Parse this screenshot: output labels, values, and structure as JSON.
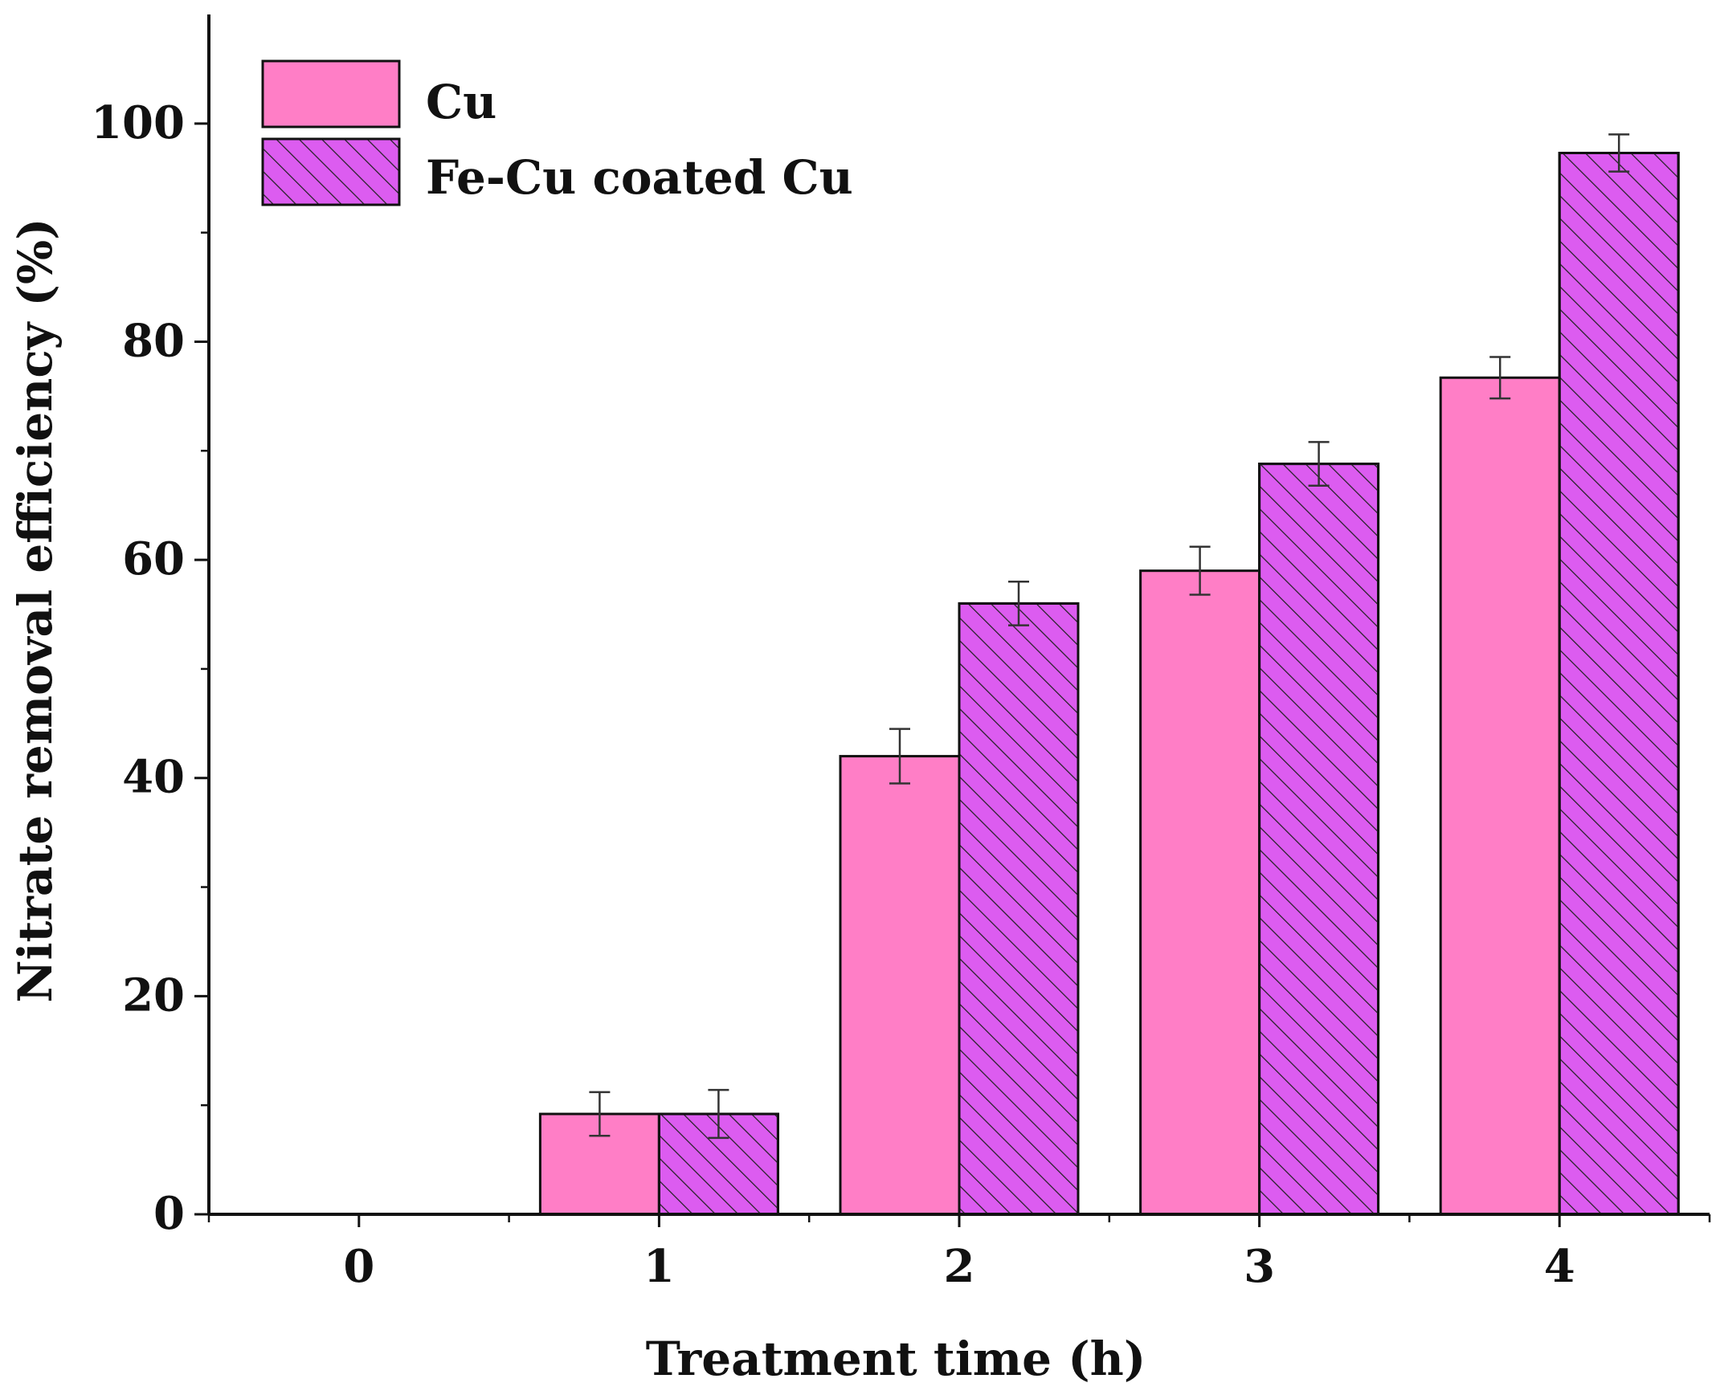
{
  "chart_data": {
    "type": "bar",
    "title": "",
    "xlabel": "Treatment time (h)",
    "ylabel": "Nitrate removal efficiency (%)",
    "categories": [
      "0",
      "1",
      "2",
      "3",
      "4"
    ],
    "ylim": [
      0,
      110
    ],
    "xlim": [
      -0.5,
      4.5
    ],
    "y_ticks": [
      0,
      20,
      40,
      60,
      80,
      100
    ],
    "y_tick_labels": [
      "0",
      "20",
      "40",
      "60",
      "80",
      "100"
    ],
    "grid": false,
    "legend_position": "top-left",
    "series": [
      {
        "name": "Cu",
        "color": "#ff7ec6",
        "pattern": "solid",
        "values": [
          0,
          9.2,
          42.0,
          59.0,
          76.7
        ],
        "errors": [
          0,
          2.0,
          2.5,
          2.2,
          1.9
        ]
      },
      {
        "name": "Fe-Cu coated Cu",
        "color": "#dc5cf0",
        "pattern": "hatched",
        "values": [
          0,
          9.2,
          56.0,
          68.8,
          97.3
        ],
        "errors": [
          0,
          2.2,
          2.0,
          2.0,
          1.7
        ]
      }
    ]
  }
}
